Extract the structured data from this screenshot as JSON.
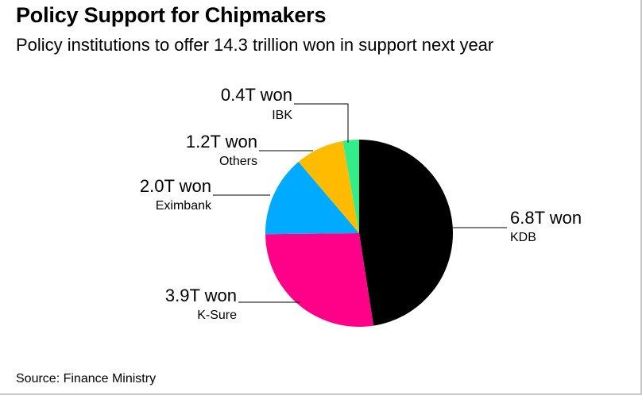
{
  "title": "Policy Support for Chipmakers",
  "subtitle": "Policy institutions to offer 14.3 trillion won in support next year",
  "source": "Source: Finance Ministry",
  "chart_data": {
    "type": "pie",
    "unit": "trillion won",
    "slices": [
      {
        "name": "KDB",
        "value": 6.8,
        "label": "6.8T won",
        "color": "#000000"
      },
      {
        "name": "K-Sure",
        "value": 3.9,
        "label": "3.9T won",
        "color": "#ff0088"
      },
      {
        "name": "Eximbank",
        "value": 2.0,
        "label": "2.0T won",
        "color": "#00aaff"
      },
      {
        "name": "Others",
        "value": 1.2,
        "label": "1.2T won",
        "color": "#ffbb00"
      },
      {
        "name": "IBK",
        "value": 0.4,
        "label": "0.4T won",
        "color": "#33ee88"
      }
    ]
  }
}
